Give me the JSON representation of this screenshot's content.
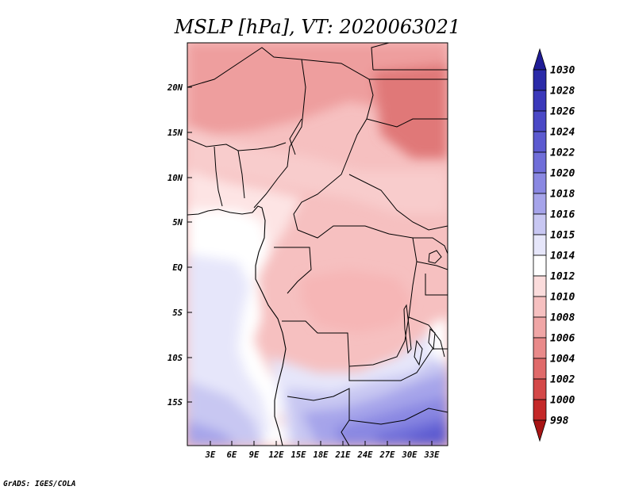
{
  "title": "MSLP [hPa], VT: 2020063021",
  "credit": "GrADS: IGES/COLA",
  "axes": {
    "x_ticks": [
      "3E",
      "6E",
      "9E",
      "12E",
      "15E",
      "18E",
      "21E",
      "24E",
      "27E",
      "30E",
      "33E"
    ],
    "y_ticks": [
      "20N",
      "15N",
      "10N",
      "5N",
      "EQ",
      "5S",
      "10S",
      "15S"
    ]
  },
  "colorbar": {
    "levels": [
      "1030",
      "1028",
      "1026",
      "1024",
      "1022",
      "1020",
      "1018",
      "1016",
      "1015",
      "1014",
      "1012",
      "1010",
      "1008",
      "1006",
      "1004",
      "1002",
      "1000",
      "998"
    ],
    "colors": [
      "#1f1c96",
      "#2a2aa8",
      "#3a38ba",
      "#4a48c6",
      "#5c5ad0",
      "#706ed9",
      "#8a88e2",
      "#a6a4ea",
      "#c8c7f2",
      "#e6e6fa",
      "#ffffff",
      "#fbdcdc",
      "#f6c0c0",
      "#f0a6a6",
      "#e98a8a",
      "#e06a6a",
      "#d44848",
      "#c42828",
      "#a81414"
    ]
  }
}
